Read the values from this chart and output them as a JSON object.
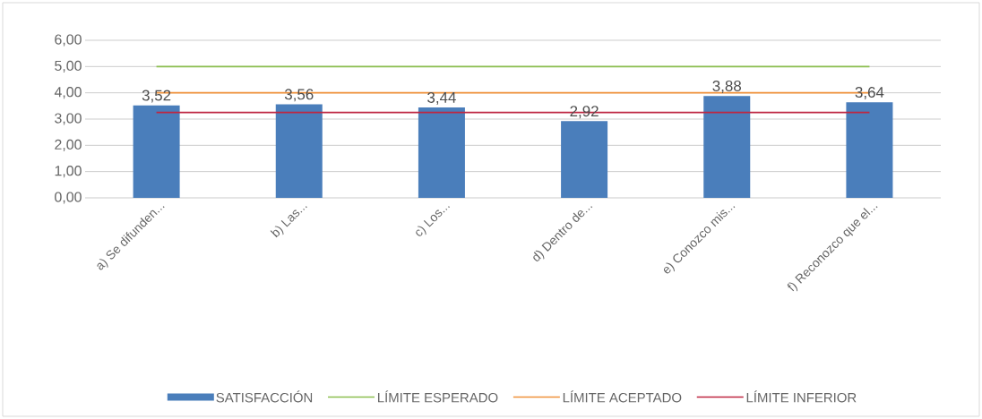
{
  "chart_data": {
    "type": "bar",
    "categories": [
      "a) Se difunden...",
      "b) Las...",
      "c) Los...",
      "d) Dentro de...",
      "e) Conozco mis...",
      "f) Reconozco que el..."
    ],
    "series": [
      {
        "name": "SATISFACCIÓN",
        "color": "#4a7ebb",
        "values": [
          3.52,
          3.56,
          3.44,
          2.92,
          3.88,
          3.64
        ],
        "value_labels": [
          "3,52",
          "3,56",
          "3,44",
          "2,92",
          "3,88",
          "3,64"
        ]
      },
      {
        "name": "LÍMITE ESPERADO",
        "type": "line",
        "color": "#8cbf4f",
        "values": [
          5,
          5,
          5,
          5,
          5,
          5
        ]
      },
      {
        "name": "LÍMITE ACEPTADO",
        "type": "line",
        "color": "#f0913a",
        "values": [
          4,
          4,
          4,
          4,
          4,
          4
        ]
      },
      {
        "name": "LÍMITE INFERIOR",
        "type": "line",
        "color": "#be2742",
        "values": [
          3.25,
          3.25,
          3.25,
          3.25,
          3.25,
          3.25
        ]
      }
    ],
    "ylim": [
      0,
      6
    ],
    "yticks": [
      {
        "value": 0,
        "label": "0,00"
      },
      {
        "value": 1,
        "label": "1,00"
      },
      {
        "value": 2,
        "label": "2,00"
      },
      {
        "value": 3,
        "label": "3,00"
      },
      {
        "value": 4,
        "label": "4,00"
      },
      {
        "value": 5,
        "label": "5,00"
      },
      {
        "value": 6,
        "label": "6,00"
      }
    ],
    "grid": "y",
    "legend": "bottom"
  }
}
